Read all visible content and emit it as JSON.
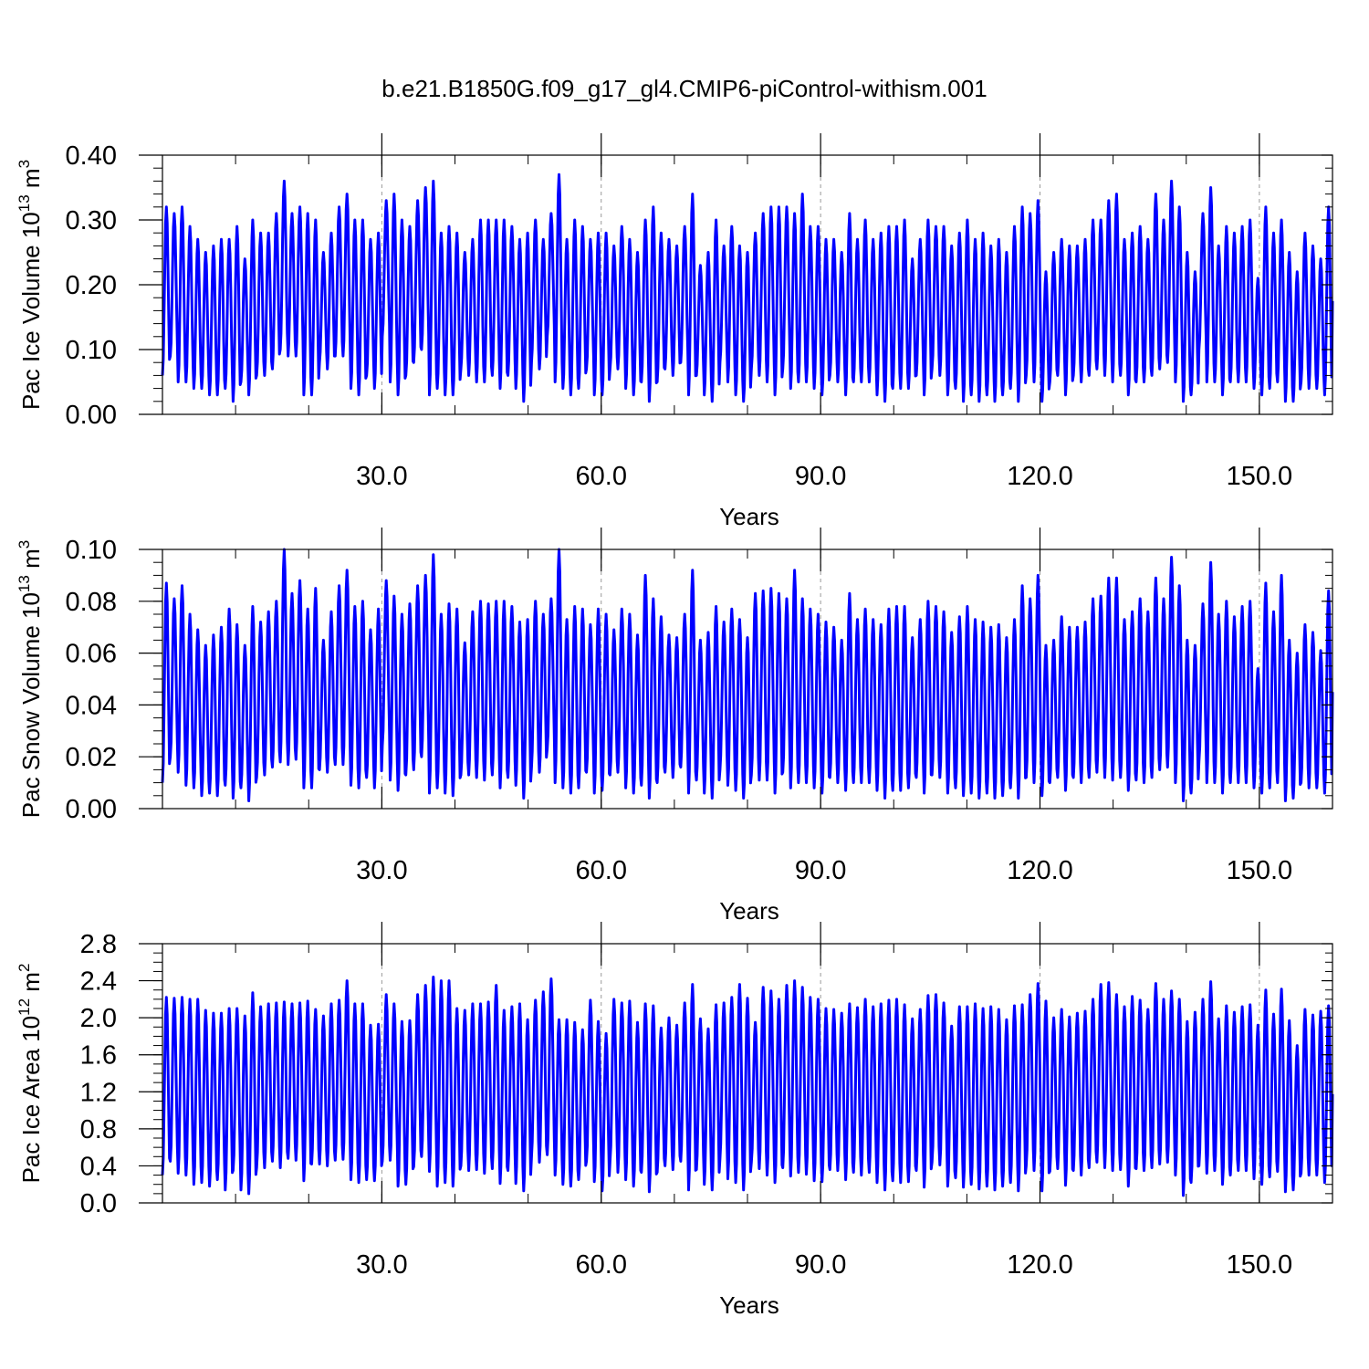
{
  "title": "b.e21.B1850G.f09_g17_gl4.CMIP6-piControl-withism.001",
  "line_color": "#0000ff",
  "chart_data": [
    {
      "type": "line",
      "series_id": "ice_volume",
      "ylabel_main": "Pac Ice Volume 10",
      "ylabel_exp": "13",
      "ylabel_unit": " m",
      "ylabel_unit_exp": "3",
      "xlabel": "Years",
      "xlim": [
        0,
        160
      ],
      "ylim": [
        0,
        0.4
      ],
      "x_ticks": [
        30,
        60,
        90,
        120,
        150
      ],
      "x_tick_labels": [
        "30.0",
        "60.0",
        "90.0",
        "120.0",
        "150.0"
      ],
      "y_ticks": [
        0,
        0.1,
        0.2,
        0.3,
        0.4
      ],
      "y_tick_labels": [
        "0.00",
        "0.10",
        "0.20",
        "0.30",
        "0.40"
      ],
      "y_minor_step": 0.02,
      "x_minor_step": 10,
      "grid": "dashed vertical at major x ticks",
      "maxima": [
        0.32,
        0.31,
        0.32,
        0.29,
        0.27,
        0.25,
        0.26,
        0.27,
        0.27,
        0.29,
        0.24,
        0.3,
        0.28,
        0.28,
        0.31,
        0.36,
        0.31,
        0.32,
        0.31,
        0.3,
        0.25,
        0.28,
        0.32,
        0.34,
        0.3,
        0.3,
        0.27,
        0.28,
        0.33,
        0.34,
        0.3,
        0.29,
        0.33,
        0.35,
        0.36,
        0.28,
        0.29,
        0.28,
        0.25,
        0.27,
        0.3,
        0.3,
        0.3,
        0.3,
        0.29,
        0.27,
        0.28,
        0.3,
        0.27,
        0.31,
        0.37,
        0.27,
        0.3,
        0.29,
        0.27,
        0.28,
        0.28,
        0.26,
        0.29,
        0.27,
        0.25,
        0.3,
        0.32,
        0.28,
        0.27,
        0.26,
        0.29,
        0.34,
        0.23,
        0.25,
        0.3,
        0.26,
        0.29,
        0.26,
        0.25,
        0.28,
        0.31,
        0.32,
        0.32,
        0.32,
        0.31,
        0.34,
        0.29,
        0.29,
        0.27,
        0.27,
        0.25,
        0.31,
        0.27,
        0.3,
        0.27,
        0.28,
        0.29,
        0.29,
        0.3,
        0.24,
        0.27,
        0.3,
        0.29,
        0.29,
        0.26,
        0.28,
        0.3,
        0.27,
        0.28,
        0.26,
        0.27,
        0.25,
        0.29,
        0.32,
        0.31,
        0.33,
        0.22,
        0.25,
        0.27,
        0.26,
        0.26,
        0.27,
        0.3,
        0.3,
        0.33,
        0.34,
        0.27,
        0.28,
        0.29,
        0.27,
        0.34,
        0.3,
        0.36,
        0.32,
        0.25,
        0.22,
        0.31,
        0.35,
        0.26,
        0.29,
        0.28,
        0.29,
        0.3,
        0.21,
        0.32,
        0.28,
        0.3,
        0.25,
        0.22,
        0.28,
        0.26,
        0.24,
        0.32
      ],
      "minima": [
        0.06,
        0.09,
        0.05,
        0.05,
        0.04,
        0.04,
        0.03,
        0.03,
        0.04,
        0.02,
        0.05,
        0.03,
        0.06,
        0.06,
        0.07,
        0.1,
        0.09,
        0.09,
        0.03,
        0.03,
        0.08,
        0.07,
        0.09,
        0.09,
        0.04,
        0.03,
        0.06,
        0.04,
        0.12,
        0.05,
        0.03,
        0.06,
        0.08,
        0.1,
        0.03,
        0.04,
        0.03,
        0.03,
        0.07,
        0.06,
        0.05,
        0.05,
        0.06,
        0.04,
        0.06,
        0.04,
        0.02,
        0.08,
        0.07,
        0.12,
        0.05,
        0.04,
        0.03,
        0.04,
        0.07,
        0.03,
        0.03,
        0.07,
        0.07,
        0.04,
        0.03,
        0.05,
        0.02,
        0.05,
        0.07,
        0.06,
        0.08,
        0.03,
        0.06,
        0.03,
        0.02,
        0.08,
        0.05,
        0.03,
        0.02,
        0.07,
        0.06,
        0.05,
        0.03,
        0.07,
        0.04,
        0.05,
        0.05,
        0.04,
        0.03,
        0.06,
        0.05,
        0.03,
        0.05,
        0.05,
        0.05,
        0.03,
        0.02,
        0.04,
        0.04,
        0.04,
        0.06,
        0.03,
        0.07,
        0.06,
        0.03,
        0.04,
        0.02,
        0.03,
        0.02,
        0.03,
        0.02,
        0.03,
        0.04,
        0.02,
        0.06,
        0.05,
        0.02,
        0.05,
        0.06,
        0.03,
        0.06,
        0.05,
        0.06,
        0.07,
        0.06,
        0.05,
        0.06,
        0.03,
        0.05,
        0.05,
        0.06,
        0.07,
        0.08,
        0.05,
        0.02,
        0.03,
        0.1,
        0.05,
        0.05,
        0.03,
        0.05,
        0.05,
        0.05,
        0.04,
        0.03,
        0.04,
        0.05,
        0.02,
        0.02,
        0.05,
        0.04,
        0.04,
        0.03
      ]
    },
    {
      "type": "line",
      "series_id": "snow_volume",
      "ylabel_main": "Pac Snow Volume 10",
      "ylabel_exp": "13",
      "ylabel_unit": " m",
      "ylabel_unit_exp": "3",
      "xlabel": "Years",
      "xlim": [
        0,
        160
      ],
      "ylim": [
        0,
        0.1
      ],
      "x_ticks": [
        30,
        60,
        90,
        120,
        150
      ],
      "x_tick_labels": [
        "30.0",
        "60.0",
        "90.0",
        "120.0",
        "150.0"
      ],
      "y_ticks": [
        0,
        0.02,
        0.04,
        0.06,
        0.08,
        0.1
      ],
      "y_tick_labels": [
        "0.00",
        "0.02",
        "0.04",
        "0.06",
        "0.08",
        "0.10"
      ],
      "y_minor_step": 0.005,
      "x_minor_step": 10,
      "grid": "dashed vertical at major x ticks",
      "maxima": [
        0.087,
        0.081,
        0.086,
        0.075,
        0.069,
        0.063,
        0.067,
        0.07,
        0.077,
        0.071,
        0.063,
        0.078,
        0.072,
        0.076,
        0.08,
        0.1,
        0.083,
        0.088,
        0.077,
        0.085,
        0.065,
        0.076,
        0.086,
        0.092,
        0.078,
        0.08,
        0.069,
        0.077,
        0.088,
        0.082,
        0.075,
        0.079,
        0.086,
        0.09,
        0.098,
        0.075,
        0.079,
        0.077,
        0.064,
        0.076,
        0.08,
        0.079,
        0.08,
        0.08,
        0.078,
        0.072,
        0.073,
        0.08,
        0.075,
        0.081,
        0.1,
        0.073,
        0.078,
        0.077,
        0.071,
        0.077,
        0.075,
        0.069,
        0.077,
        0.075,
        0.067,
        0.09,
        0.081,
        0.074,
        0.067,
        0.066,
        0.075,
        0.092,
        0.065,
        0.068,
        0.078,
        0.072,
        0.077,
        0.073,
        0.066,
        0.083,
        0.084,
        0.085,
        0.083,
        0.081,
        0.092,
        0.081,
        0.077,
        0.075,
        0.072,
        0.07,
        0.065,
        0.083,
        0.073,
        0.077,
        0.073,
        0.071,
        0.077,
        0.078,
        0.078,
        0.066,
        0.073,
        0.08,
        0.078,
        0.076,
        0.068,
        0.074,
        0.078,
        0.073,
        0.072,
        0.07,
        0.071,
        0.066,
        0.073,
        0.086,
        0.081,
        0.09,
        0.063,
        0.065,
        0.074,
        0.07,
        0.07,
        0.072,
        0.081,
        0.082,
        0.089,
        0.089,
        0.073,
        0.076,
        0.081,
        0.076,
        0.089,
        0.081,
        0.097,
        0.086,
        0.065,
        0.063,
        0.079,
        0.095,
        0.075,
        0.08,
        0.074,
        0.078,
        0.08,
        0.054,
        0.087,
        0.076,
        0.09,
        0.065,
        0.06,
        0.071,
        0.068,
        0.061,
        0.084
      ],
      "minima": [
        0.01,
        0.02,
        0.014,
        0.009,
        0.008,
        0.005,
        0.006,
        0.005,
        0.009,
        0.004,
        0.008,
        0.003,
        0.012,
        0.013,
        0.016,
        0.018,
        0.017,
        0.019,
        0.008,
        0.008,
        0.015,
        0.014,
        0.017,
        0.017,
        0.009,
        0.008,
        0.012,
        0.008,
        0.024,
        0.011,
        0.007,
        0.013,
        0.015,
        0.02,
        0.006,
        0.008,
        0.006,
        0.005,
        0.013,
        0.013,
        0.012,
        0.011,
        0.013,
        0.008,
        0.012,
        0.009,
        0.004,
        0.016,
        0.014,
        0.023,
        0.01,
        0.008,
        0.006,
        0.008,
        0.014,
        0.006,
        0.007,
        0.013,
        0.014,
        0.008,
        0.006,
        0.009,
        0.004,
        0.01,
        0.014,
        0.012,
        0.016,
        0.006,
        0.011,
        0.006,
        0.004,
        0.015,
        0.009,
        0.007,
        0.004,
        0.013,
        0.011,
        0.011,
        0.006,
        0.014,
        0.008,
        0.01,
        0.01,
        0.008,
        0.006,
        0.012,
        0.01,
        0.007,
        0.01,
        0.01,
        0.01,
        0.007,
        0.004,
        0.007,
        0.007,
        0.008,
        0.012,
        0.006,
        0.013,
        0.012,
        0.006,
        0.008,
        0.005,
        0.006,
        0.004,
        0.006,
        0.004,
        0.005,
        0.008,
        0.004,
        0.012,
        0.01,
        0.005,
        0.01,
        0.012,
        0.007,
        0.012,
        0.01,
        0.012,
        0.014,
        0.012,
        0.011,
        0.012,
        0.007,
        0.011,
        0.01,
        0.012,
        0.015,
        0.016,
        0.01,
        0.003,
        0.006,
        0.018,
        0.01,
        0.01,
        0.006,
        0.01,
        0.01,
        0.01,
        0.008,
        0.006,
        0.008,
        0.01,
        0.003,
        0.004,
        0.01,
        0.008,
        0.008,
        0.006
      ]
    },
    {
      "type": "line",
      "series_id": "ice_area",
      "ylabel_main": "Pac Ice Area 10",
      "ylabel_exp": "12",
      "ylabel_unit": " m",
      "ylabel_unit_exp": "2",
      "xlabel": "Years",
      "xlim": [
        0,
        160
      ],
      "ylim": [
        0,
        2.8
      ],
      "x_ticks": [
        30,
        60,
        90,
        120,
        150
      ],
      "x_tick_labels": [
        "30.0",
        "60.0",
        "90.0",
        "120.0",
        "150.0"
      ],
      "y_ticks": [
        0,
        0.4,
        0.8,
        1.2,
        1.6,
        2.0,
        2.4,
        2.8
      ],
      "y_tick_labels": [
        "0.0",
        "0.4",
        "0.8",
        "1.2",
        "1.6",
        "2.0",
        "2.4",
        "2.8"
      ],
      "y_minor_step": 0.1,
      "x_minor_step": 10,
      "grid": "dashed vertical at major x ticks",
      "maxima": [
        2.22,
        2.21,
        2.22,
        2.2,
        2.2,
        2.08,
        2.05,
        2.05,
        2.1,
        2.1,
        2.02,
        2.27,
        2.12,
        2.15,
        2.16,
        2.17,
        2.15,
        2.16,
        2.18,
        2.09,
        2.02,
        2.15,
        2.19,
        2.4,
        2.15,
        2.15,
        1.92,
        1.93,
        2.25,
        2.15,
        1.96,
        1.97,
        2.25,
        2.35,
        2.44,
        2.4,
        2.4,
        2.1,
        2.08,
        2.15,
        2.15,
        2.17,
        2.35,
        2.08,
        2.12,
        2.15,
        1.98,
        2.19,
        2.28,
        2.42,
        1.98,
        1.98,
        1.95,
        1.87,
        2.19,
        1.96,
        1.83,
        2.2,
        2.16,
        2.18,
        1.95,
        2.15,
        2.13,
        1.89,
        2.0,
        1.92,
        2.16,
        2.36,
        1.99,
        1.88,
        2.14,
        2.16,
        2.22,
        2.36,
        2.21,
        1.95,
        2.33,
        2.29,
        2.2,
        2.35,
        2.4,
        2.33,
        2.22,
        2.2,
        2.1,
        2.09,
        2.05,
        2.15,
        2.11,
        2.2,
        2.12,
        2.15,
        2.19,
        2.2,
        2.14,
        1.99,
        2.09,
        2.24,
        2.25,
        2.16,
        1.91,
        2.12,
        2.12,
        2.15,
        2.1,
        2.12,
        2.09,
        1.98,
        2.13,
        2.14,
        2.25,
        2.37,
        2.18,
        2.0,
        2.09,
        2.01,
        2.05,
        2.07,
        2.2,
        2.36,
        2.38,
        2.25,
        2.12,
        2.23,
        2.19,
        2.09,
        2.37,
        2.2,
        2.29,
        2.2,
        1.96,
        2.06,
        2.2,
        2.39,
        1.99,
        2.13,
        2.06,
        2.12,
        2.14,
        1.92,
        2.3,
        2.04,
        2.31,
        1.97,
        1.7,
        2.09,
        2.03,
        2.07,
        2.13
      ],
      "minima": [
        0.3,
        0.45,
        0.32,
        0.3,
        0.2,
        0.22,
        0.18,
        0.25,
        0.14,
        0.35,
        0.14,
        0.1,
        0.38,
        0.38,
        0.45,
        0.38,
        0.48,
        0.46,
        0.24,
        0.42,
        0.42,
        0.4,
        0.46,
        0.47,
        0.25,
        0.22,
        0.25,
        0.24,
        0.45,
        0.46,
        0.18,
        0.2,
        0.39,
        0.5,
        0.34,
        0.18,
        0.22,
        0.18,
        0.4,
        0.35,
        0.36,
        0.32,
        0.37,
        0.21,
        0.35,
        0.21,
        0.13,
        0.5,
        0.44,
        0.52,
        0.3,
        0.2,
        0.18,
        0.25,
        0.45,
        0.23,
        0.13,
        0.45,
        0.33,
        0.25,
        0.18,
        0.33,
        0.12,
        0.33,
        0.4,
        0.36,
        0.45,
        0.14,
        0.36,
        0.2,
        0.14,
        0.48,
        0.26,
        0.22,
        0.14,
        0.44,
        0.37,
        0.3,
        0.22,
        0.38,
        0.29,
        0.33,
        0.31,
        0.24,
        0.23,
        0.36,
        0.35,
        0.25,
        0.33,
        0.3,
        0.33,
        0.22,
        0.14,
        0.24,
        0.22,
        0.23,
        0.35,
        0.17,
        0.44,
        0.41,
        0.18,
        0.27,
        0.17,
        0.2,
        0.15,
        0.18,
        0.14,
        0.18,
        0.22,
        0.13,
        0.4,
        0.35,
        0.13,
        0.34,
        0.37,
        0.19,
        0.35,
        0.3,
        0.38,
        0.44,
        0.38,
        0.35,
        0.36,
        0.18,
        0.37,
        0.35,
        0.38,
        0.42,
        0.44,
        0.3,
        0.08,
        0.22,
        0.4,
        0.32,
        0.35,
        0.2,
        0.3,
        0.35,
        0.35,
        0.26,
        0.2,
        0.28,
        0.34,
        0.12,
        0.14,
        0.32,
        0.3,
        0.3,
        0.22
      ]
    }
  ]
}
